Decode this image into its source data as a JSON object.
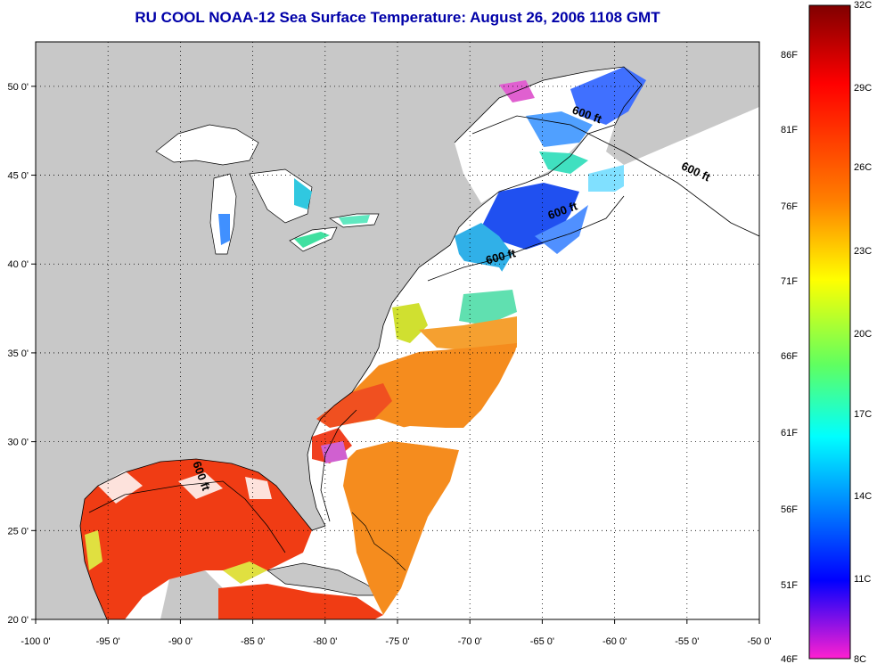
{
  "title": "RU COOL  NOAA-12  Sea Surface Temperature:  August 26, 2006 1108 GMT",
  "lon_ticks": [
    {
      "value": -100,
      "label": "-100 0'"
    },
    {
      "value": -95,
      "label": "-95 0'"
    },
    {
      "value": -90,
      "label": "-90 0'"
    },
    {
      "value": -85,
      "label": "-85 0'"
    },
    {
      "value": -80,
      "label": "-80 0'"
    },
    {
      "value": -75,
      "label": "-75 0'"
    },
    {
      "value": -70,
      "label": "-70 0'"
    },
    {
      "value": -65,
      "label": "-65 0'"
    },
    {
      "value": -60,
      "label": "-60 0'"
    },
    {
      "value": -55,
      "label": "-55 0'"
    },
    {
      "value": -50,
      "label": "-50 0'"
    }
  ],
  "lat_ticks": [
    {
      "value": 50,
      "label": "50 0'"
    },
    {
      "value": 45,
      "label": "45 0'"
    },
    {
      "value": 40,
      "label": "40 0'"
    },
    {
      "value": 35,
      "label": "35 0'"
    },
    {
      "value": 30,
      "label": "30 0'"
    },
    {
      "value": 25,
      "label": "25 0'"
    },
    {
      "value": 20,
      "label": "20 0'"
    }
  ],
  "lon_range": [
    -100,
    -50
  ],
  "lat_range": [
    20,
    52.5
  ],
  "isobath_labels": [
    {
      "text": "600 ft",
      "lon": -62,
      "lat": 48.2,
      "rotate": 20
    },
    {
      "text": "600 ft",
      "lon": -54.5,
      "lat": 45.0,
      "rotate": 25
    },
    {
      "text": "600 ft",
      "lon": -63.5,
      "lat": 42.8,
      "rotate": -20
    },
    {
      "text": "600 ft",
      "lon": -67.8,
      "lat": 40.2,
      "rotate": -15
    },
    {
      "text": "600 ft",
      "lon": -88.8,
      "lat": 28.0,
      "rotate": 70
    }
  ],
  "colorbar": {
    "f_labels": [
      "86F",
      "81F",
      "76F",
      "71F",
      "66F",
      "61F",
      "56F",
      "51F",
      "46F"
    ],
    "c_labels": [
      "32C",
      "29C",
      "26C",
      "23C",
      "20C",
      "17C",
      "14C",
      "11C",
      "8C"
    ],
    "stops": [
      "#800000",
      "#ff0000",
      "#ff8000",
      "#ffff00",
      "#80ff40",
      "#00ffff",
      "#0080ff",
      "#0000ff",
      "#ff20d0"
    ]
  },
  "colors": {
    "land": "#c8c8c8",
    "ocean_nodata": "#ffffff",
    "warm": "#f03c14",
    "orange": "#f58c1e",
    "cool": "#4080ff",
    "cyan": "#30d0e0",
    "title": "#0000a8"
  }
}
